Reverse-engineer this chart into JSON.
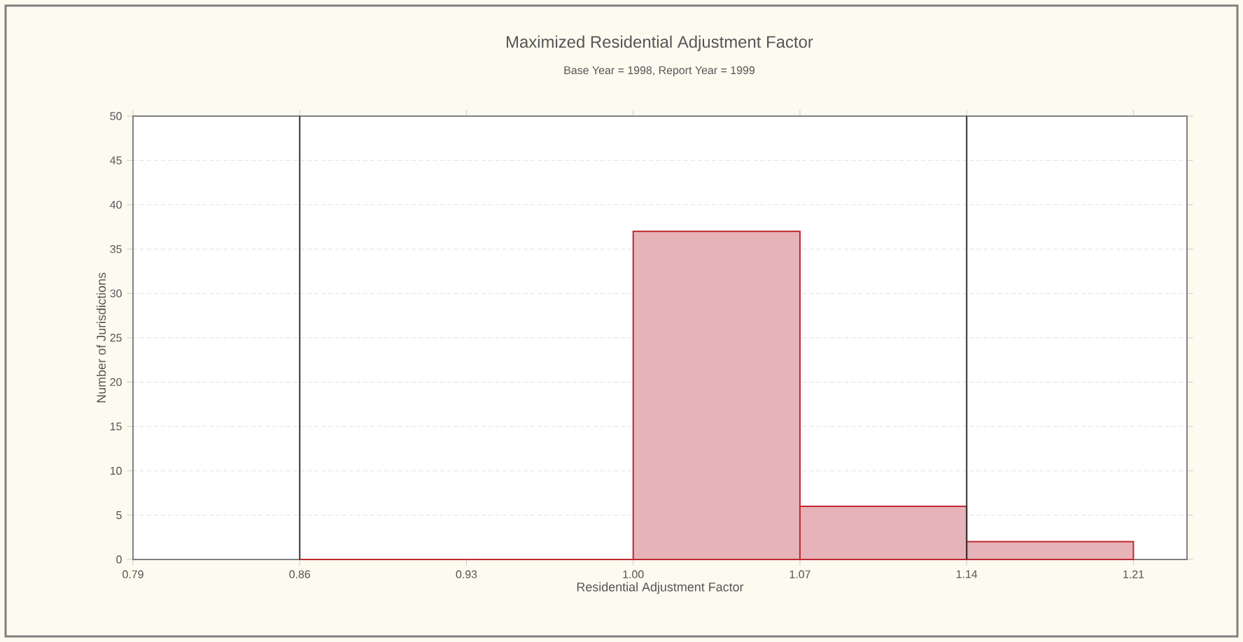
{
  "chart_data": {
    "type": "histogram",
    "title": "Maximized Residential Adjustment Factor",
    "subtitle": "Base Year = 1998, Report Year = 1999",
    "xlabel": "Residential Adjustment Factor",
    "ylabel": "Number of Jurisdictions",
    "bins": [
      0.86,
      0.93,
      1.0,
      1.07,
      1.14,
      1.21
    ],
    "values": [
      0,
      0,
      37,
      6,
      2
    ],
    "color": "#e6b3b8",
    "xlim": [
      0.79,
      1.2325
    ],
    "xticks": [
      0.79,
      0.86,
      0.93,
      {
        "value": 1.0,
        "label": "1.00"
      },
      1.07,
      1.14,
      1.21
    ],
    "ylim": [
      0,
      50
    ],
    "yticks": [
      0,
      5,
      10,
      15,
      20,
      25,
      30,
      35,
      40,
      45,
      50
    ],
    "ref_lines": [
      {
        "axis": "x",
        "value": 0.86,
        "color": "#333333"
      },
      {
        "axis": "x",
        "value": 1.14,
        "color": "#333333"
      }
    ],
    "grid": "y"
  }
}
